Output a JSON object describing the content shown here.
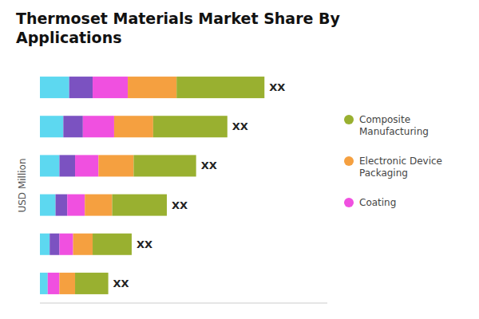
{
  "chart_data": {
    "type": "bar",
    "orientation": "horizontal",
    "stacked": true,
    "title": "Thermoset Materials Market Share By\nApplications",
    "y_label": "USD Million",
    "categories": [
      null,
      null,
      null,
      null,
      null,
      null
    ],
    "series": [
      {
        "color": "#5DD8F0",
        "values": [
          1.5,
          1.2,
          1.0,
          0.8,
          0.5,
          0.4
        ]
      },
      {
        "color": "#7B52C1",
        "values": [
          1.2,
          1.0,
          0.8,
          0.6,
          0.5,
          0.0
        ]
      },
      {
        "name": "Coating",
        "color": "#F050E0",
        "values": [
          1.8,
          1.6,
          1.2,
          0.9,
          0.7,
          0.6
        ]
      },
      {
        "name": "Electronic Device\nPackaging",
        "color": "#F5A040",
        "values": [
          2.5,
          2.0,
          1.8,
          1.4,
          1.0,
          0.8
        ]
      },
      {
        "name": "Composite\nManufacturing",
        "color": "#99B030",
        "values": [
          4.5,
          3.8,
          3.2,
          2.8,
          2.0,
          1.7
        ]
      }
    ],
    "annotations": [
      "XX",
      "XX",
      "XX",
      "XX",
      "XX",
      "XX"
    ],
    "xlim": [
      0,
      14.72
    ],
    "tick_labels": false,
    "grid": false,
    "legend": "right"
  }
}
